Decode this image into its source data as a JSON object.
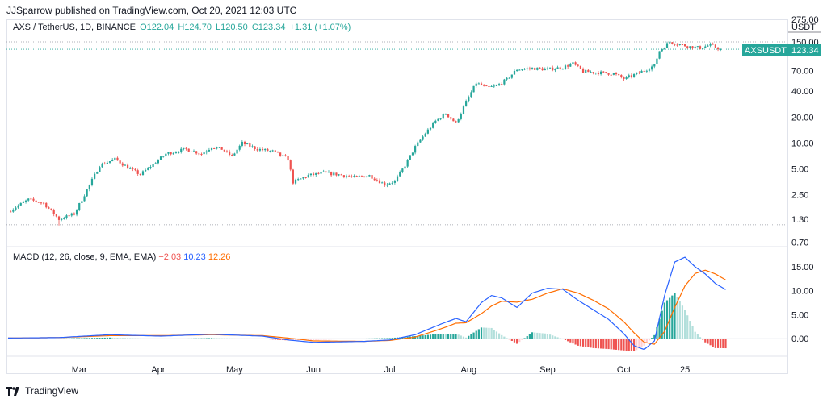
{
  "header": {
    "publisher_line": "JJSparrow published on TradingView.com, Oct 20, 2021 12:03 UTC"
  },
  "legend": {
    "symbol": "AXS / TetherUS, 1D, BINANCE",
    "open": "O122.04",
    "high": "H124.70",
    "low": "L120.50",
    "close": "C123.34",
    "change": "+1.31 (+1.07%)"
  },
  "price_label": {
    "ticker": "AXSUSDT",
    "value": "123.34"
  },
  "axis_currency": "USDT",
  "macd_legend": {
    "name": "MACD (12, 26, close, 9, EMA, EMA)",
    "hist": "−2.03",
    "macd": "10.23",
    "signal": "12.26"
  },
  "footer": {
    "brand": "TradingView"
  },
  "colors": {
    "up": "#26a69a",
    "down": "#ef5350",
    "macd_line": "#2962ff",
    "signal_line": "#ff6d00",
    "hist_up_strong": "#26a69a",
    "hist_up_weak": "#b2dfdb",
    "hist_down_strong": "#ef5350",
    "hist_down_weak": "#ffcdd2"
  },
  "chart_data": [
    {
      "type": "candlestick",
      "title": "AXS / TetherUS, 1D, BINANCE",
      "scale": "log",
      "y_ticks": [
        "275.00",
        "150.00",
        "70.00",
        "40.00",
        "20.00",
        "10.00",
        "5.00",
        "2.50",
        "1.30",
        "0.70"
      ],
      "y_tick_values": [
        275,
        150,
        70,
        40,
        20,
        10,
        5,
        2.5,
        1.3,
        0.7
      ],
      "ylim": [
        0.7,
        275
      ],
      "x_ticks": [
        "Mar",
        "Apr",
        "May",
        "Jun",
        "Jul",
        "Aug",
        "Sep",
        "Oct",
        "25"
      ],
      "x_tick_days": [
        28,
        59,
        89,
        120,
        150,
        181,
        212,
        242,
        266
      ],
      "day_range": [
        0,
        292
      ],
      "last_price": 123.34,
      "reference_levels": [
        150,
        1.12
      ],
      "close_path": [
        [
          0,
          1.6
        ],
        [
          8,
          2.2
        ],
        [
          14,
          2.0
        ],
        [
          20,
          1.3
        ],
        [
          26,
          1.5
        ],
        [
          30,
          2.5
        ],
        [
          36,
          5.5
        ],
        [
          42,
          6.5
        ],
        [
          48,
          5.0
        ],
        [
          52,
          4.3
        ],
        [
          58,
          6.0
        ],
        [
          62,
          7.5
        ],
        [
          66,
          8.0
        ],
        [
          70,
          8.5
        ],
        [
          76,
          7.5
        ],
        [
          80,
          9.0
        ],
        [
          84,
          8.5
        ],
        [
          88,
          7.0
        ],
        [
          92,
          10.0
        ],
        [
          98,
          8.5
        ],
        [
          104,
          8.0
        ],
        [
          110,
          6.5
        ],
        [
          112,
          3.5
        ],
        [
          118,
          4.2
        ],
        [
          124,
          4.5
        ],
        [
          130,
          4.3
        ],
        [
          136,
          4.0
        ],
        [
          142,
          4.2
        ],
        [
          148,
          3.3
        ],
        [
          152,
          3.6
        ],
        [
          156,
          5.5
        ],
        [
          160,
          9.0
        ],
        [
          164,
          13.0
        ],
        [
          168,
          18.0
        ],
        [
          172,
          22.0
        ],
        [
          176,
          17.0
        ],
        [
          180,
          30.0
        ],
        [
          184,
          50.0
        ],
        [
          188,
          44.0
        ],
        [
          192,
          46.0
        ],
        [
          196,
          55.0
        ],
        [
          200,
          72.0
        ],
        [
          206,
          74.0
        ],
        [
          212,
          72.0
        ],
        [
          218,
          76.0
        ],
        [
          222,
          84.0
        ],
        [
          226,
          68.0
        ],
        [
          232,
          66.0
        ],
        [
          238,
          64.0
        ],
        [
          242,
          56.0
        ],
        [
          246,
          62.0
        ],
        [
          250,
          70.0
        ],
        [
          254,
          80.0
        ],
        [
          256,
          118.0
        ],
        [
          260,
          150.0
        ],
        [
          264,
          140.0
        ],
        [
          268,
          132.0
        ],
        [
          272,
          128.0
        ],
        [
          276,
          138.0
        ],
        [
          280,
          123.34
        ]
      ]
    },
    {
      "type": "macd",
      "title": "MACD (12, 26, close, 9, EMA, EMA)",
      "y_ticks": [
        "15.00",
        "10.00",
        "5.00",
        "0.00"
      ],
      "y_tick_values": [
        15,
        10,
        5,
        0
      ],
      "ylim": [
        -3,
        18
      ],
      "series": [
        {
          "name": "MACD",
          "points": [
            [
              0,
              0.1
            ],
            [
              20,
              0.2
            ],
            [
              40,
              0.8
            ],
            [
              60,
              0.5
            ],
            [
              80,
              0.9
            ],
            [
              100,
              0.5
            ],
            [
              110,
              -0.3
            ],
            [
              120,
              -0.8
            ],
            [
              140,
              -0.6
            ],
            [
              150,
              -0.3
            ],
            [
              160,
              0.8
            ],
            [
              170,
              3.0
            ],
            [
              176,
              4.2
            ],
            [
              180,
              3.5
            ],
            [
              186,
              7.5
            ],
            [
              190,
              9.0
            ],
            [
              194,
              8.5
            ],
            [
              200,
              6.5
            ],
            [
              206,
              9.5
            ],
            [
              212,
              10.5
            ],
            [
              218,
              10.3
            ],
            [
              224,
              8.0
            ],
            [
              230,
              6.0
            ],
            [
              236,
              4.0
            ],
            [
              242,
              1.0
            ],
            [
              246,
              -1.5
            ],
            [
              250,
              -2.3
            ],
            [
              254,
              -0.5
            ],
            [
              258,
              9.0
            ],
            [
              262,
              16.0
            ],
            [
              266,
              17.0
            ],
            [
              270,
              15.0
            ],
            [
              274,
              13.5
            ],
            [
              278,
              11.5
            ],
            [
              282,
              10.23
            ]
          ]
        },
        {
          "name": "Signal",
          "points": [
            [
              0,
              0.1
            ],
            [
              20,
              0.2
            ],
            [
              40,
              0.6
            ],
            [
              60,
              0.6
            ],
            [
              80,
              0.8
            ],
            [
              100,
              0.6
            ],
            [
              110,
              0.1
            ],
            [
              120,
              -0.5
            ],
            [
              140,
              -0.6
            ],
            [
              150,
              -0.4
            ],
            [
              160,
              0.3
            ],
            [
              170,
              2.0
            ],
            [
              176,
              3.2
            ],
            [
              180,
              3.3
            ],
            [
              186,
              5.2
            ],
            [
              190,
              6.8
            ],
            [
              194,
              7.8
            ],
            [
              200,
              7.6
            ],
            [
              206,
              8.2
            ],
            [
              212,
              9.5
            ],
            [
              218,
              10.4
            ],
            [
              224,
              9.5
            ],
            [
              230,
              8.0
            ],
            [
              236,
              6.2
            ],
            [
              242,
              3.5
            ],
            [
              246,
              1.2
            ],
            [
              250,
              -0.8
            ],
            [
              254,
              -1.2
            ],
            [
              258,
              1.5
            ],
            [
              262,
              6.5
            ],
            [
              266,
              11.0
            ],
            [
              270,
              13.6
            ],
            [
              274,
              14.3
            ],
            [
              278,
              13.5
            ],
            [
              282,
              12.26
            ]
          ]
        }
      ]
    }
  ]
}
